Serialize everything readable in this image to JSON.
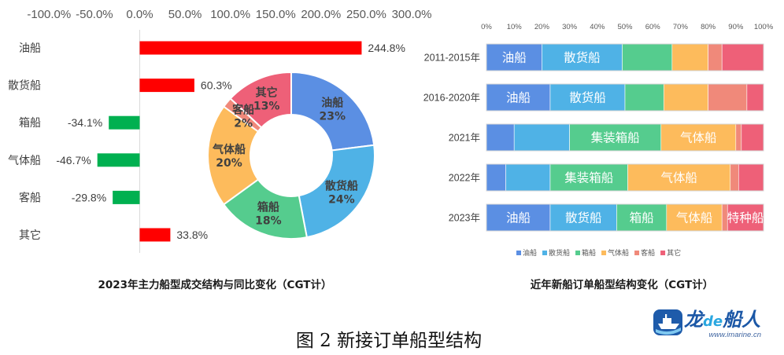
{
  "figure": {
    "caption": "图 2 新接订单船型结构"
  },
  "logo": {
    "part1": "龙",
    "part2": "de",
    "part3": "船人",
    "url": "www.imarine.cn"
  },
  "chart_data": [
    {
      "type": "bar",
      "orientation": "horizontal",
      "title": "2023年主力船型成交结构与同比变化（CGT计）",
      "categories": [
        "油船",
        "散货船",
        "箱船",
        "气体船",
        "客船",
        "其它"
      ],
      "values": [
        244.8,
        60.3,
        -34.1,
        -46.7,
        -29.8,
        33.8
      ],
      "value_labels": [
        "244.8%",
        "60.3%",
        "-34.1%",
        "-46.7%",
        "-29.8%",
        "33.8%"
      ],
      "xlim": [
        -100,
        300
      ],
      "xticks": [
        -100,
        -50,
        0,
        50,
        100,
        150,
        200,
        250,
        300
      ],
      "xtick_labels": [
        "-100.0%",
        "-50.0%",
        "0.0%",
        "50.0%",
        "100.0%",
        "150.0%",
        "200.0%",
        "250.0%",
        "300.0%"
      ],
      "x_axis_position": "top",
      "colors": {
        "positive": "#FF0000",
        "negative": "#00B050"
      }
    },
    {
      "type": "pie",
      "donut": true,
      "categories": [
        "油船",
        "散货船",
        "箱船",
        "气体船",
        "客船",
        "其它"
      ],
      "values": [
        23,
        24,
        18,
        20,
        2,
        13
      ],
      "value_labels": [
        "23%",
        "24%",
        "18%",
        "20%",
        "2%",
        "13%"
      ],
      "colors": [
        "#5B8FE3",
        "#4FB2E6",
        "#55CC8E",
        "#FDBB5C",
        "#F0897A",
        "#EE6078"
      ]
    },
    {
      "type": "bar",
      "orientation": "horizontal",
      "stacked": "percent",
      "title": "近年新船订单船型结构变化（CGT计）",
      "categories": [
        "2011-2015年",
        "2016-2020年",
        "2021年",
        "2022年",
        "2023年"
      ],
      "xlim": [
        0,
        100
      ],
      "xticks": [
        0,
        10,
        20,
        30,
        40,
        50,
        60,
        70,
        80,
        90,
        100
      ],
      "xtick_labels": [
        "0%",
        "10%",
        "20%",
        "30%",
        "40%",
        "50%",
        "60%",
        "70%",
        "80%",
        "90%",
        "100%"
      ],
      "x_axis_position": "top",
      "legend": "bottom",
      "series": [
        {
          "name": "油船",
          "color": "#5B8FE3",
          "values": [
            20,
            23,
            10,
            7,
            23
          ],
          "segment_labels": [
            "油船",
            "油船",
            "",
            "",
            "油船"
          ]
        },
        {
          "name": "散货船",
          "color": "#4FB2E6",
          "values": [
            29,
            27,
            20,
            16,
            24
          ],
          "segment_labels": [
            "散货船",
            "散货船",
            "",
            "",
            "散货船"
          ]
        },
        {
          "name": "箱船",
          "color": "#55CC8E",
          "values": [
            18,
            14,
            33,
            28,
            18
          ],
          "segment_labels": [
            "",
            "",
            "集装箱船",
            "集装箱船",
            "箱船"
          ]
        },
        {
          "name": "气体船",
          "color": "#FDBB5C",
          "values": [
            13,
            16,
            27,
            37,
            20
          ],
          "segment_labels": [
            "",
            "",
            "气体船",
            "气体船",
            "气体船"
          ]
        },
        {
          "name": "客船",
          "color": "#F0897A",
          "values": [
            5,
            14,
            2,
            3,
            2
          ],
          "segment_labels": [
            "",
            "",
            "",
            "",
            ""
          ]
        },
        {
          "name": "其它",
          "color": "#EE6078",
          "values": [
            15,
            6,
            8,
            9,
            13
          ],
          "segment_labels": [
            "",
            "",
            "",
            "",
            "特种船"
          ]
        }
      ]
    }
  ]
}
